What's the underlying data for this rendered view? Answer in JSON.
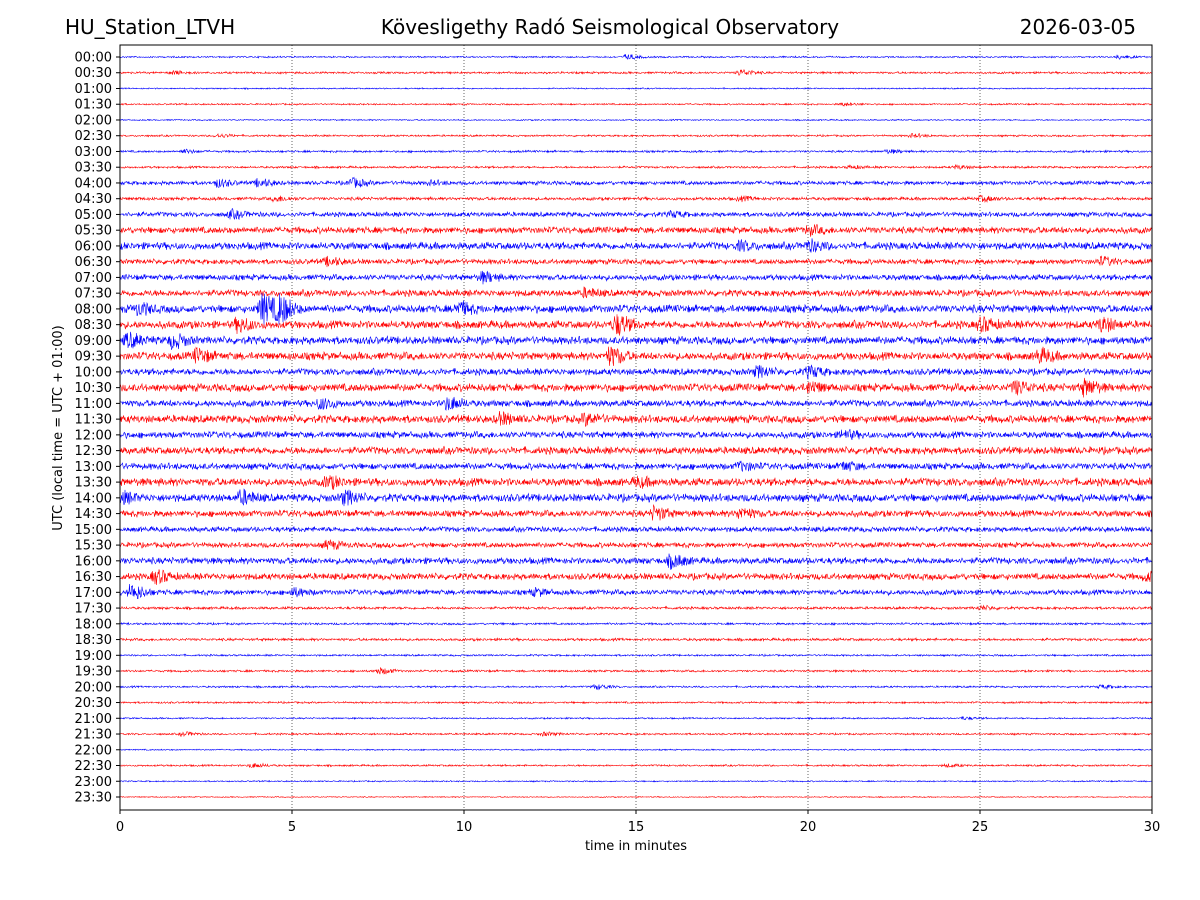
{
  "header": {
    "station": "HU_Station_LTVH",
    "title": "Kövesligethy Radó Seismological Observatory",
    "date": "2026-03-05"
  },
  "chart_data": {
    "type": "line",
    "subtype": "helicorder",
    "title": "Kövesligethy Radó Seismological Observatory",
    "xlabel": "time in minutes",
    "ylabel": "UTC (local time = UTC + 01:00)",
    "xlim": [
      0,
      30
    ],
    "xticks": [
      "0",
      "5",
      "10",
      "15",
      "20",
      "25",
      "30"
    ],
    "grid": "vertical dotted at 5-minute intervals",
    "colors": [
      "#0000ff",
      "#ff0000"
    ],
    "amplitude_units": "relative counts",
    "rows": [
      {
        "label": "00:00",
        "noise": 0.6,
        "events": [
          [
            14.7,
            2
          ],
          [
            29,
            1.5
          ]
        ]
      },
      {
        "label": "00:30",
        "noise": 0.8,
        "events": [
          [
            1.5,
            1.5
          ],
          [
            18,
            2.5
          ]
        ]
      },
      {
        "label": "01:00",
        "noise": 0.5,
        "events": []
      },
      {
        "label": "01:30",
        "noise": 0.6,
        "events": [
          [
            21,
            1.2
          ]
        ]
      },
      {
        "label": "02:00",
        "noise": 0.5,
        "events": []
      },
      {
        "label": "02:30",
        "noise": 0.7,
        "events": [
          [
            2.8,
            1.5
          ],
          [
            23,
            1.5
          ]
        ]
      },
      {
        "label": "03:00",
        "noise": 0.8,
        "events": [
          [
            1.8,
            1.5
          ],
          [
            22.3,
            1.5
          ]
        ]
      },
      {
        "label": "03:30",
        "noise": 0.8,
        "events": [
          [
            24.3,
            1.5
          ],
          [
            21.2,
            1.2
          ]
        ]
      },
      {
        "label": "04:00",
        "noise": 1.5,
        "events": [
          [
            2.8,
            3
          ],
          [
            4,
            3
          ],
          [
            6.7,
            3.5
          ],
          [
            9,
            1.5
          ]
        ]
      },
      {
        "label": "04:30",
        "noise": 1.2,
        "events": [
          [
            4.5,
            2
          ],
          [
            18,
            1.5
          ],
          [
            25,
            2
          ]
        ]
      },
      {
        "label": "05:00",
        "noise": 1.8,
        "events": [
          [
            3.2,
            3
          ],
          [
            16,
            2
          ]
        ]
      },
      {
        "label": "05:30",
        "noise": 2.5,
        "events": [
          [
            20,
            3
          ]
        ]
      },
      {
        "label": "06:00",
        "noise": 2.8,
        "events": [
          [
            20,
            4
          ],
          [
            18,
            3
          ]
        ]
      },
      {
        "label": "06:30",
        "noise": 2,
        "events": [
          [
            6,
            3
          ],
          [
            28.5,
            3
          ]
        ]
      },
      {
        "label": "07:00",
        "noise": 2.2,
        "events": [
          [
            10.5,
            4
          ]
        ]
      },
      {
        "label": "07:30",
        "noise": 2.5,
        "events": [
          [
            13.5,
            3
          ]
        ]
      },
      {
        "label": "08:00",
        "noise": 3,
        "events": [
          [
            4.1,
            12
          ],
          [
            4.6,
            10
          ],
          [
            9.8,
            5
          ],
          [
            0.5,
            4
          ]
        ]
      },
      {
        "label": "08:30",
        "noise": 3,
        "events": [
          [
            3.4,
            5
          ],
          [
            14.4,
            8
          ],
          [
            25,
            5
          ],
          [
            28.5,
            5
          ]
        ]
      },
      {
        "label": "09:00",
        "noise": 3,
        "events": [
          [
            1.5,
            5
          ],
          [
            0.2,
            5
          ]
        ]
      },
      {
        "label": "09:30",
        "noise": 3,
        "events": [
          [
            2.2,
            5
          ],
          [
            14.2,
            7
          ],
          [
            26.7,
            5
          ]
        ]
      },
      {
        "label": "10:00",
        "noise": 2.5,
        "events": [
          [
            18.5,
            4
          ],
          [
            20,
            4
          ]
        ]
      },
      {
        "label": "10:30",
        "noise": 3,
        "events": [
          [
            26,
            5
          ],
          [
            28,
            6
          ],
          [
            20,
            4
          ]
        ]
      },
      {
        "label": "11:00",
        "noise": 2.5,
        "events": [
          [
            5.8,
            4
          ],
          [
            9.5,
            5
          ]
        ]
      },
      {
        "label": "11:30",
        "noise": 3,
        "events": [
          [
            11,
            4
          ],
          [
            13.5,
            4
          ]
        ]
      },
      {
        "label": "12:00",
        "noise": 2.5,
        "events": [
          [
            21,
            3
          ]
        ]
      },
      {
        "label": "12:30",
        "noise": 2.8,
        "events": []
      },
      {
        "label": "13:00",
        "noise": 2.5,
        "events": [
          [
            18,
            3
          ],
          [
            21,
            3
          ]
        ]
      },
      {
        "label": "13:30",
        "noise": 3,
        "events": [
          [
            6,
            4
          ],
          [
            15,
            3
          ]
        ]
      },
      {
        "label": "14:00",
        "noise": 3,
        "events": [
          [
            3.5,
            5
          ],
          [
            6.5,
            5
          ],
          [
            0,
            4
          ]
        ]
      },
      {
        "label": "14:30",
        "noise": 2.5,
        "events": [
          [
            15.5,
            5
          ],
          [
            18,
            4
          ]
        ]
      },
      {
        "label": "15:00",
        "noise": 2,
        "events": []
      },
      {
        "label": "15:30",
        "noise": 2,
        "events": [
          [
            6,
            3
          ]
        ]
      },
      {
        "label": "16:00",
        "noise": 2.5,
        "events": [
          [
            16,
            5
          ]
        ]
      },
      {
        "label": "16:30",
        "noise": 2.5,
        "events": [
          [
            1,
            5
          ],
          [
            29.8,
            3
          ]
        ]
      },
      {
        "label": "17:00",
        "noise": 2,
        "events": [
          [
            0.3,
            6
          ],
          [
            5,
            3
          ],
          [
            12,
            2.5
          ]
        ]
      },
      {
        "label": "17:30",
        "noise": 1,
        "events": [
          [
            25,
            1.5
          ]
        ]
      },
      {
        "label": "18:00",
        "noise": 0.8,
        "events": []
      },
      {
        "label": "18:30",
        "noise": 1,
        "events": []
      },
      {
        "label": "19:00",
        "noise": 0.7,
        "events": []
      },
      {
        "label": "19:30",
        "noise": 0.8,
        "events": [
          [
            7.5,
            2.5
          ]
        ]
      },
      {
        "label": "20:00",
        "noise": 0.7,
        "events": [
          [
            13.8,
            2
          ],
          [
            28.5,
            1.5
          ]
        ]
      },
      {
        "label": "20:30",
        "noise": 0.7,
        "events": []
      },
      {
        "label": "21:00",
        "noise": 0.6,
        "events": [
          [
            24.5,
            1
          ]
        ]
      },
      {
        "label": "21:30",
        "noise": 0.7,
        "events": [
          [
            1.8,
            1.5
          ],
          [
            12.3,
            1.5
          ]
        ]
      },
      {
        "label": "22:00",
        "noise": 0.5,
        "events": []
      },
      {
        "label": "22:30",
        "noise": 0.7,
        "events": [
          [
            3.8,
            1.8
          ],
          [
            24,
            1.2
          ]
        ]
      },
      {
        "label": "23:00",
        "noise": 0.5,
        "events": []
      },
      {
        "label": "23:30",
        "noise": 0.4,
        "events": []
      }
    ]
  }
}
